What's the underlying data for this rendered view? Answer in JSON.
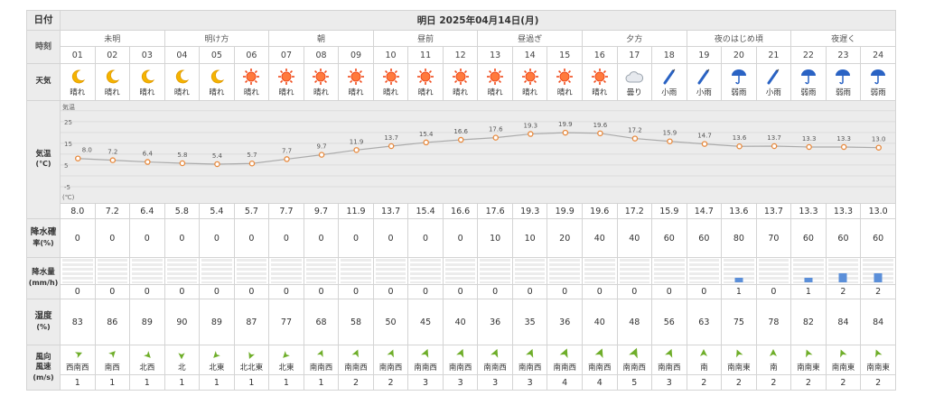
{
  "title": "明日 2025年04月14日(月)",
  "labels": {
    "date": "日付",
    "hour": "時刻",
    "weather": "天気",
    "temp": "気温",
    "temp_unit": "(℃)",
    "rain_prob": "降水確",
    "rain_prob_unit": "率(%)",
    "rain_amt": "降水量",
    "rain_amt_unit": "(mm/h)",
    "humidity": "湿度",
    "humidity_unit": "(%)",
    "wind_dir": "風向",
    "wind_speed": "風速",
    "wind_unit": "(m/s)"
  },
  "periods": [
    "未明",
    "明け方",
    "朝",
    "昼前",
    "昼過ぎ",
    "夕方",
    "夜のはじめ頃",
    "夜遅く"
  ],
  "hours": [
    "01",
    "02",
    "03",
    "04",
    "05",
    "06",
    "07",
    "08",
    "09",
    "10",
    "11",
    "12",
    "13",
    "14",
    "15",
    "16",
    "17",
    "18",
    "19",
    "20",
    "21",
    "22",
    "23",
    "24"
  ],
  "weather": [
    "晴れ",
    "晴れ",
    "晴れ",
    "晴れ",
    "晴れ",
    "晴れ",
    "晴れ",
    "晴れ",
    "晴れ",
    "晴れ",
    "晴れ",
    "晴れ",
    "晴れ",
    "晴れ",
    "晴れ",
    "晴れ",
    "曇り",
    "小雨",
    "小雨",
    "弱雨",
    "小雨",
    "弱雨",
    "弱雨",
    "弱雨"
  ],
  "weather_icons": [
    "moon-icon",
    "moon-icon",
    "moon-icon",
    "moon-icon",
    "moon-icon",
    "sun-icon",
    "sun-icon",
    "sun-icon",
    "sun-icon",
    "sun-icon",
    "sun-icon",
    "sun-icon",
    "sun-icon",
    "sun-icon",
    "sun-icon",
    "sun-icon",
    "cloud-icon",
    "closed-umbrella-icon",
    "closed-umbrella-icon",
    "umbrella-icon",
    "closed-umbrella-icon",
    "umbrella-icon",
    "umbrella-icon",
    "umbrella-icon"
  ],
  "temps": [
    "8.0",
    "7.2",
    "6.4",
    "5.8",
    "5.4",
    "5.7",
    "7.7",
    "9.7",
    "11.9",
    "13.7",
    "15.4",
    "16.6",
    "17.6",
    "19.3",
    "19.9",
    "19.6",
    "17.2",
    "15.9",
    "14.7",
    "13.6",
    "13.7",
    "13.3",
    "13.3",
    "13.0"
  ],
  "rain_prob": [
    "0",
    "0",
    "0",
    "0",
    "0",
    "0",
    "0",
    "0",
    "0",
    "0",
    "0",
    "0",
    "10",
    "10",
    "20",
    "40",
    "40",
    "60",
    "60",
    "80",
    "70",
    "60",
    "60",
    "60"
  ],
  "rain_amt": [
    "0",
    "0",
    "0",
    "0",
    "0",
    "0",
    "0",
    "0",
    "0",
    "0",
    "0",
    "0",
    "0",
    "0",
    "0",
    "0",
    "0",
    "0",
    "0",
    "1",
    "0",
    "1",
    "2",
    "2"
  ],
  "humidity": [
    "83",
    "86",
    "89",
    "90",
    "89",
    "87",
    "77",
    "68",
    "58",
    "50",
    "45",
    "40",
    "36",
    "35",
    "36",
    "40",
    "48",
    "56",
    "63",
    "75",
    "78",
    "82",
    "84",
    "84"
  ],
  "wind_dir": [
    "西南西",
    "南西",
    "北西",
    "北",
    "北東",
    "北北東",
    "北東",
    "南南西",
    "南南西",
    "南南西",
    "南南西",
    "南南西",
    "南南西",
    "南南西",
    "南南西",
    "南南西",
    "南南西",
    "南南西",
    "南",
    "南南東",
    "南",
    "南南東",
    "南南東",
    "南南東"
  ],
  "wind_speed": [
    "1",
    "1",
    "1",
    "1",
    "1",
    "1",
    "1",
    "1",
    "2",
    "2",
    "3",
    "3",
    "3",
    "3",
    "4",
    "4",
    "5",
    "3",
    "2",
    "2",
    "2",
    "2",
    "2",
    "2"
  ],
  "chart_data": {
    "type": "line",
    "x": [
      "01",
      "02",
      "03",
      "04",
      "05",
      "06",
      "07",
      "08",
      "09",
      "10",
      "11",
      "12",
      "13",
      "14",
      "15",
      "16",
      "17",
      "18",
      "19",
      "20",
      "21",
      "22",
      "23",
      "24"
    ],
    "series": [
      {
        "values": [
          8.0,
          7.2,
          6.4,
          5.8,
          5.4,
          5.7,
          7.7,
          9.7,
          11.9,
          13.7,
          15.4,
          16.6,
          17.6,
          19.3,
          19.9,
          19.6,
          17.2,
          15.9,
          14.7,
          13.6,
          13.7,
          13.3,
          13.3,
          13.0
        ]
      }
    ],
    "ylabel": "気温",
    "yunit": "(℃)",
    "yticks": [
      25,
      15,
      5,
      -5
    ],
    "ylim": [
      -10,
      32
    ],
    "grid": true,
    "colors": {
      "line": "#aaaaaa",
      "point": "#e8893c",
      "plot_bg": "#ececec"
    }
  }
}
